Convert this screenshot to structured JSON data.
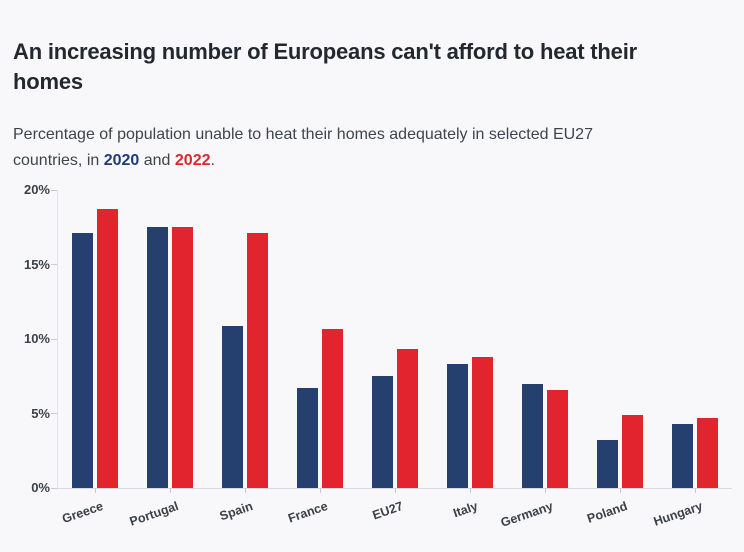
{
  "header": {
    "title": "An increasing number of Europeans can't afford to heat their homes",
    "subtitle": {
      "text_before": "Percentage of population unable to heat their homes adequately in selected EU27 countries, in ",
      "year_2020": "2020",
      "text_middle": " and ",
      "year_2022": "2022",
      "text_after": "."
    }
  },
  "colors": {
    "background": "#F8F8FA",
    "title_text": "#23282F",
    "subtitle_text": "#3F444B",
    "series_2020_blue": "#25406F",
    "series_2022_red": "#E2242F",
    "axis_label": "#3B4046",
    "axis_line": "#D9DBDF"
  },
  "chart_data": {
    "type": "bar",
    "categories": [
      "Greece",
      "Portugal",
      "Spain",
      "France",
      "EU27",
      "Italy",
      "Germany",
      "Poland",
      "Hungary"
    ],
    "series": [
      {
        "name": "2020",
        "color": "#25406F",
        "values": [
          17.1,
          17.5,
          10.9,
          6.7,
          7.5,
          8.3,
          7.0,
          3.2,
          4.3
        ]
      },
      {
        "name": "2022",
        "color": "#E2242F",
        "values": [
          18.7,
          17.5,
          17.1,
          10.7,
          9.3,
          8.8,
          6.6,
          4.9,
          4.7
        ]
      }
    ],
    "title": "An increasing number of Europeans can't afford to heat their homes",
    "xlabel": "",
    "ylabel": "",
    "ylim": [
      0,
      20
    ],
    "yticks": [
      {
        "value": 0,
        "label": "0%"
      },
      {
        "value": 5,
        "label": "5%"
      },
      {
        "value": 10,
        "label": "10%"
      },
      {
        "value": 15,
        "label": "15%"
      },
      {
        "value": 20,
        "label": "20%"
      }
    ],
    "grid": false,
    "legend_position": "none",
    "x_label_rotation_deg": -19
  }
}
